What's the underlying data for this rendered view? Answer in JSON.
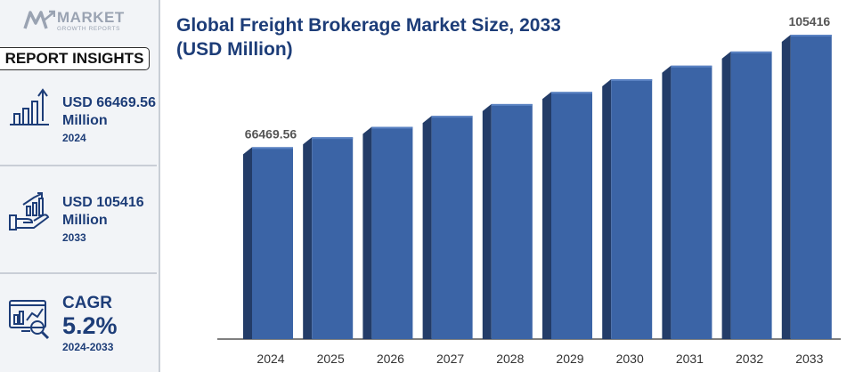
{
  "logo": {
    "word": "MARKET",
    "sub": "GROWTH REPORTS",
    "icon": "market-growth-logo"
  },
  "sidebar": {
    "badge": "REPORT INSIGHTS",
    "stats": [
      {
        "icon": "bar-growth-arrow-icon",
        "line1": "USD 66469.56",
        "line2": "Million",
        "year": "2024"
      },
      {
        "icon": "hand-chart-icon",
        "line1": "USD 105416",
        "line2": "Million",
        "year": "2033"
      },
      {
        "icon": "analytics-magnifier-icon",
        "label": "CAGR",
        "value": "5.2%",
        "period": "2024-2033"
      }
    ]
  },
  "colors": {
    "bar_front": "#3b64a6",
    "bar_side": "#233c68",
    "bar_top": "#5a82c2",
    "title": "#1d3d78",
    "axis": "#333333"
  },
  "chart_data": {
    "type": "bar",
    "title": "Global Freight Brokerage Market Size, 2033 (USD Million)",
    "categories": [
      "2024",
      "2025",
      "2026",
      "2027",
      "2028",
      "2029",
      "2030",
      "2031",
      "2032",
      "2033"
    ],
    "values": [
      66469.56,
      69900,
      73500,
      77300,
      81400,
      85600,
      90000,
      94700,
      99600,
      105416
    ],
    "data_labels": [
      {
        "category": "2024",
        "text": "66469.56"
      },
      {
        "category": "2033",
        "text": "105416"
      }
    ],
    "xlabel": "",
    "ylabel": "",
    "grid": false
  }
}
